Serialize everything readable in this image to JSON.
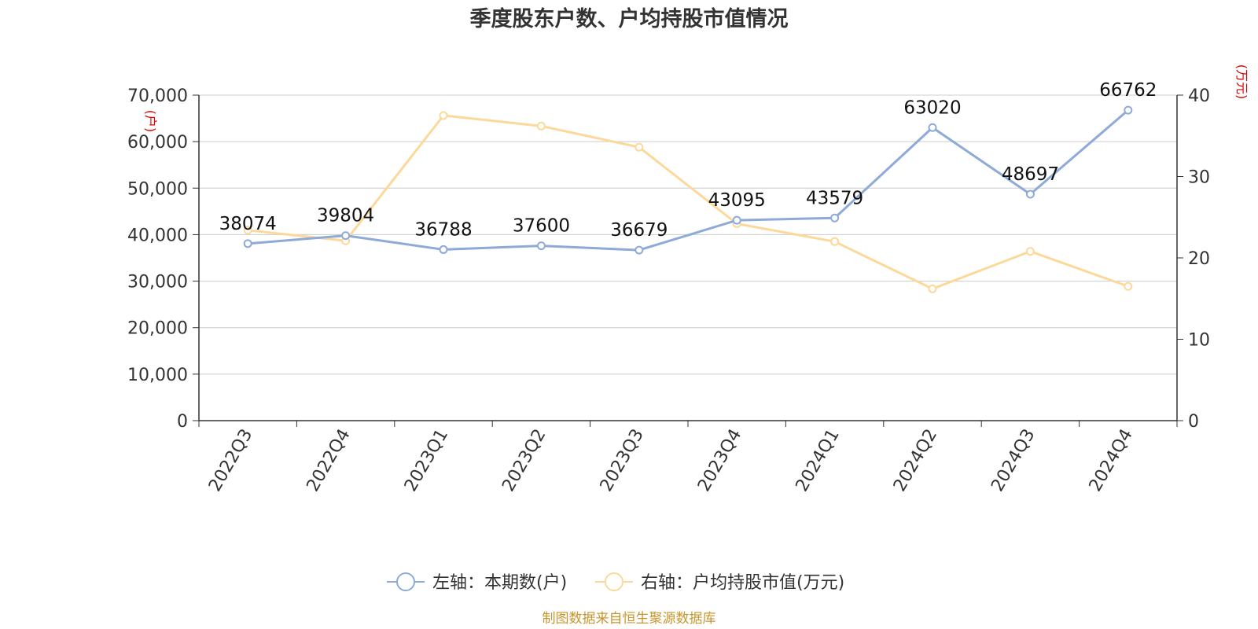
{
  "chart_data": {
    "type": "line",
    "title": "季度股东户数、户均持股市值情况",
    "categories": [
      "2022Q3",
      "2022Q4",
      "2023Q1",
      "2023Q2",
      "2023Q3",
      "2023Q4",
      "2024Q1",
      "2024Q2",
      "2024Q3",
      "2024Q4"
    ],
    "left_axis": {
      "unit_label": "(户)",
      "ylim": [
        0,
        70000
      ],
      "ticks": [
        0,
        10000,
        20000,
        30000,
        40000,
        50000,
        60000,
        70000
      ],
      "tick_labels": [
        "0",
        "10,000",
        "20,000",
        "30,000",
        "40,000",
        "50,000",
        "60,000",
        "70,000"
      ]
    },
    "right_axis": {
      "unit_label": "(万元)",
      "ylim": [
        0,
        40
      ],
      "ticks": [
        0,
        10,
        20,
        30,
        40
      ],
      "tick_labels": [
        "0",
        "10",
        "20",
        "30",
        "40"
      ]
    },
    "series": [
      {
        "name": "左轴：本期数(户)",
        "axis": "left",
        "color": "#8eaad8",
        "values": [
          38074,
          39804,
          36788,
          37600,
          36679,
          43095,
          43579,
          63020,
          48697,
          66762
        ],
        "data_labels": [
          "38074",
          "39804",
          "36788",
          "37600",
          "36679",
          "43095",
          "43579",
          "63020",
          "48697",
          "66762"
        ]
      },
      {
        "name": "右轴：户均持股市值(万元)",
        "axis": "right",
        "color": "#fcd99a",
        "values": [
          23.4,
          22.1,
          37.5,
          36.2,
          33.6,
          24.2,
          22.0,
          16.2,
          20.8,
          16.5
        ]
      }
    ],
    "grid": true,
    "legend_position": "bottom"
  },
  "source_note": "制图数据来自恒生聚源数据库"
}
